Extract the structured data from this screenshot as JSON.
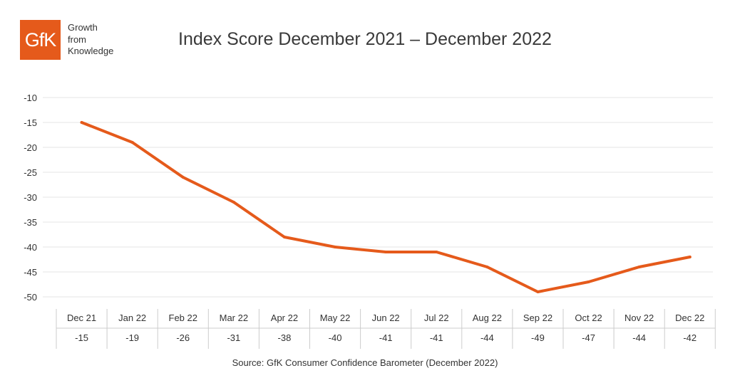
{
  "brand": {
    "logo_text": "GfK",
    "tagline": [
      "Growth",
      "from",
      "Knowledge"
    ],
    "color": "#e55a1b"
  },
  "title": "Index Score December 2021 – December 2022",
  "source": "Source: GfK Consumer Confidence Barometer (December 2022)",
  "chart_data": {
    "type": "line",
    "title": "Index Score December 2021 – December 2022",
    "xlabel": "",
    "ylabel": "",
    "categories": [
      "Dec 21",
      "Jan 22",
      "Feb 22",
      "Mar 22",
      "Apr 22",
      "May 22",
      "Jun 22",
      "Jul 22",
      "Aug 22",
      "Sep 22",
      "Oct 22",
      "Nov 22",
      "Dec 22"
    ],
    "series": [
      {
        "values": [
          -15,
          -19,
          -26,
          -31,
          -38,
          -40,
          -41,
          -41,
          -44,
          -49,
          -47,
          -44,
          -42
        ],
        "color": "#e55a1b"
      }
    ],
    "ylim": [
      -50,
      -10
    ],
    "yticks": [
      -10,
      -15,
      -20,
      -25,
      -30,
      -35,
      -40,
      -45,
      -50
    ],
    "table_values": [
      "-15",
      "-19",
      "-26",
      "-31",
      "-38",
      "-40",
      "-41",
      "-41",
      "-44",
      "-49",
      "-47",
      "-44",
      "-42"
    ],
    "grid": true,
    "legend": "none"
  }
}
